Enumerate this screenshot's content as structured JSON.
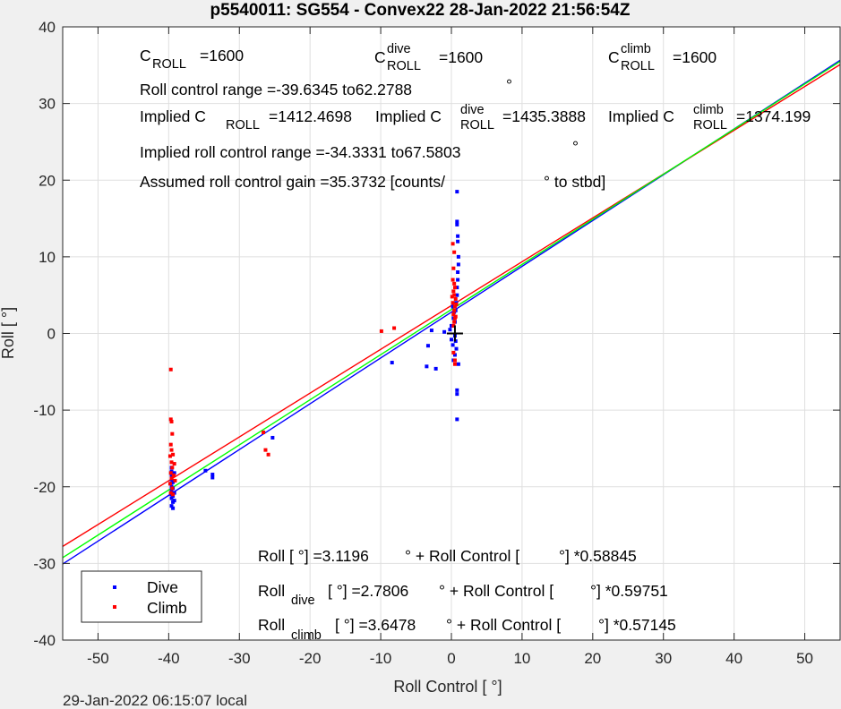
{
  "chart_data": {
    "type": "scatter",
    "title": "p5540011: SG554 - Convex22 28-Jan-2022 21:56:54Z",
    "xlabel": "Roll Control [   °]",
    "ylabel": "Roll [  °]",
    "xlim": [
      -55,
      55
    ],
    "ylim": [
      -40,
      40
    ],
    "x_ticks": [
      -50,
      -40,
      -30,
      -20,
      -10,
      0,
      10,
      20,
      30,
      40,
      50
    ],
    "y_ticks": [
      -40,
      -30,
      -20,
      -10,
      0,
      10,
      20,
      30,
      40
    ],
    "grid": true,
    "legend_position": "bottom-left",
    "footer": "29-Jan-2022 06:15:07 local",
    "colors": {
      "dive": "#0000ff",
      "climb": "#ff0000",
      "all_fit": "#00ff00",
      "marker": "#000000"
    },
    "series": [
      {
        "name": "Dive",
        "color": "#0000ff",
        "points": [
          [
            -39.6,
            -22.5
          ],
          [
            -39.6,
            -21.5
          ],
          [
            -39.6,
            -21
          ],
          [
            -39.6,
            -20.5
          ],
          [
            -39.6,
            -20
          ],
          [
            -39.6,
            -19.5
          ],
          [
            -39.6,
            -19
          ],
          [
            -39.6,
            -18.5
          ],
          [
            -39.6,
            -18
          ],
          [
            -39.6,
            -17.5
          ],
          [
            -39.4,
            -22.8
          ],
          [
            -39.4,
            -22
          ],
          [
            -39.4,
            -21.2
          ],
          [
            -39.4,
            -20.2
          ],
          [
            -39.4,
            -19.4
          ],
          [
            -39.2,
            -21.8
          ],
          [
            -39.2,
            -20.8
          ],
          [
            -39.2,
            -18.2
          ],
          [
            -34.8,
            -17.9
          ],
          [
            -33.8,
            -18.4
          ],
          [
            -33.8,
            -18.8
          ],
          [
            -25.3,
            -13.6
          ],
          [
            -8.4,
            -3.8
          ],
          [
            -3.5,
            -4.3
          ],
          [
            -3.3,
            -1.6
          ],
          [
            -2.8,
            0.4
          ],
          [
            -2.2,
            -4.6
          ],
          [
            -1,
            0.2
          ],
          [
            -0.2,
            0.5
          ],
          [
            0,
            -0.8
          ],
          [
            0,
            1
          ],
          [
            0.2,
            -1.5
          ],
          [
            0.3,
            2
          ],
          [
            0.5,
            -0.3
          ],
          [
            0.5,
            1.5
          ],
          [
            0.6,
            3
          ],
          [
            0.7,
            -2
          ],
          [
            0.7,
            4
          ],
          [
            0.8,
            5
          ],
          [
            0.8,
            6
          ],
          [
            0.9,
            7
          ],
          [
            0.9,
            8
          ],
          [
            1,
            9
          ],
          [
            1,
            10
          ],
          [
            1,
            -4
          ],
          [
            0.8,
            -7.4
          ],
          [
            0.8,
            -7.9
          ],
          [
            0.8,
            -11.2
          ],
          [
            0.9,
            12
          ],
          [
            0.9,
            12.7
          ],
          [
            0.8,
            14.2
          ],
          [
            0.8,
            14.6
          ],
          [
            0.8,
            18.5
          ],
          [
            0.5,
            -2.8
          ],
          [
            0.3,
            -3.5
          ],
          [
            0.6,
            -1
          ],
          [
            0.4,
            2.8
          ],
          [
            0.2,
            3.5
          ]
        ]
      },
      {
        "name": "Climb",
        "color": "#ff0000",
        "points": [
          [
            -39.7,
            -4.7
          ],
          [
            -39.7,
            -11.2
          ],
          [
            -39.6,
            -11.5
          ],
          [
            -39.5,
            -13.1
          ],
          [
            -39.7,
            -14.5
          ],
          [
            -39.6,
            -15.2
          ],
          [
            -39.8,
            -16
          ],
          [
            -39.6,
            -16.8
          ],
          [
            -39.5,
            -17.5
          ],
          [
            -39.7,
            -18.2
          ],
          [
            -39.6,
            -18.9
          ],
          [
            -39.8,
            -19.6
          ],
          [
            -39.5,
            -20.2
          ],
          [
            -39.7,
            -20.8
          ],
          [
            -39.4,
            -15.8
          ],
          [
            -39.2,
            -17
          ],
          [
            -39.3,
            -18.5
          ],
          [
            -39.1,
            -19.2
          ],
          [
            -39.4,
            -21
          ],
          [
            -26.6,
            -12.9
          ],
          [
            -26.3,
            -15.2
          ],
          [
            -25.9,
            -15.8
          ],
          [
            -9.9,
            0.3
          ],
          [
            -8.1,
            0.7
          ],
          [
            0.3,
            1
          ],
          [
            0.4,
            1.5
          ],
          [
            0.5,
            2
          ],
          [
            0.3,
            2.5
          ],
          [
            0.4,
            3
          ],
          [
            0.5,
            3.5
          ],
          [
            0.2,
            4
          ],
          [
            0.6,
            4.5
          ],
          [
            0.4,
            5
          ],
          [
            0.3,
            5.5
          ],
          [
            0.5,
            6
          ],
          [
            0.4,
            6.5
          ],
          [
            0.2,
            7
          ],
          [
            0.6,
            2.2
          ],
          [
            0.7,
            3.8
          ],
          [
            0.1,
            4.8
          ],
          [
            0.5,
            -3.5
          ],
          [
            0.3,
            -2.5
          ],
          [
            0.5,
            -4
          ],
          [
            0.2,
            11.7
          ],
          [
            0.4,
            10.6
          ],
          [
            0.3,
            8.5
          ]
        ]
      }
    ],
    "fit_lines": [
      {
        "name": "dive",
        "color": "#0000ff",
        "intercept": 2.7806,
        "slope": 0.59751
      },
      {
        "name": "climb",
        "color": "#ff0000",
        "intercept": 3.6478,
        "slope": 0.57145
      },
      {
        "name": "all",
        "color": "#00ff00",
        "intercept": 3.1196,
        "slope": 0.58845
      }
    ],
    "annotations": {
      "c_roll": {
        "base": "C",
        "sub": "ROLL",
        "value": "=1600"
      },
      "c_roll_dive": {
        "base": "C",
        "sup": "dive",
        "sub": "ROLL",
        "value": "=1600"
      },
      "c_roll_climb": {
        "base": "C",
        "sup": "climb",
        "sub": "ROLL",
        "value": "=1600"
      },
      "range_line": "Roll control range =-39.6345 to62.2788",
      "implied_all": {
        "prefix": "Implied C",
        "sub": "ROLL",
        "value": "=1412.4698"
      },
      "implied_dive": {
        "prefix": "Implied C",
        "sup": "dive",
        "sub": "ROLL",
        "value": "=1435.3888"
      },
      "implied_climb": {
        "prefix": "Implied C",
        "sup": "climb",
        "sub": "ROLL",
        "value": "=1374.199"
      },
      "implied_range": "Implied roll control range =-34.3331 to67.5803",
      "gain": "Assumed roll control gain =35.3732 [counts/",
      "gain_suffix": "° to stbd]",
      "degree": "°",
      "eq_all": {
        "p1": "Roll [  °] =3.1196",
        "p2": "° + Roll Control [",
        "p3": "°] *0.58845"
      },
      "eq_dive": {
        "base": "Roll",
        "sub": "dive",
        "p1": "[  °] =2.7806",
        "p2": "° + Roll Control [",
        "p3": "°] *0.59751"
      },
      "eq_climb": {
        "base": "Roll",
        "sub": "climb",
        "p1": "[  °] =3.6478",
        "p2": "° + Roll Control [",
        "p3": "°] *0.57145"
      }
    }
  }
}
